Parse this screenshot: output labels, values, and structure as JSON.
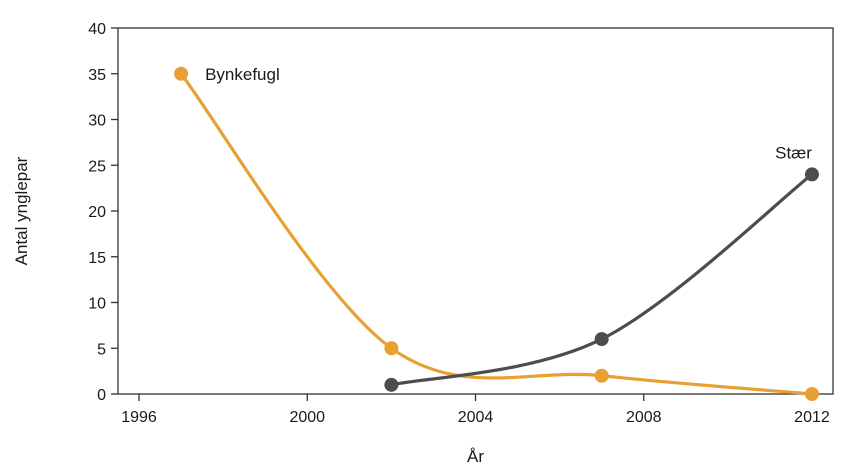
{
  "chart_data": {
    "type": "line",
    "title": "",
    "xlabel": "År",
    "ylabel": "Antal ynglepar",
    "xlim": [
      1995.5,
      2012.5
    ],
    "ylim": [
      0,
      40
    ],
    "x_ticks": [
      1996,
      2000,
      2004,
      2008,
      2012
    ],
    "y_ticks": [
      0,
      5,
      10,
      15,
      20,
      25,
      30,
      35,
      40
    ],
    "grid": false,
    "legend": "none",
    "series": [
      {
        "name": "Bynkefugl",
        "color": "#e8a033",
        "points": [
          {
            "x": 1997,
            "y": 35
          },
          {
            "x": 2002,
            "y": 5
          },
          {
            "x": 2007,
            "y": 2
          },
          {
            "x": 2012,
            "y": 0
          }
        ]
      },
      {
        "name": "Stær",
        "color": "#4d4d4d",
        "points": [
          {
            "x": 2002,
            "y": 1
          },
          {
            "x": 2007,
            "y": 6
          },
          {
            "x": 2012,
            "y": 24
          }
        ]
      }
    ]
  }
}
